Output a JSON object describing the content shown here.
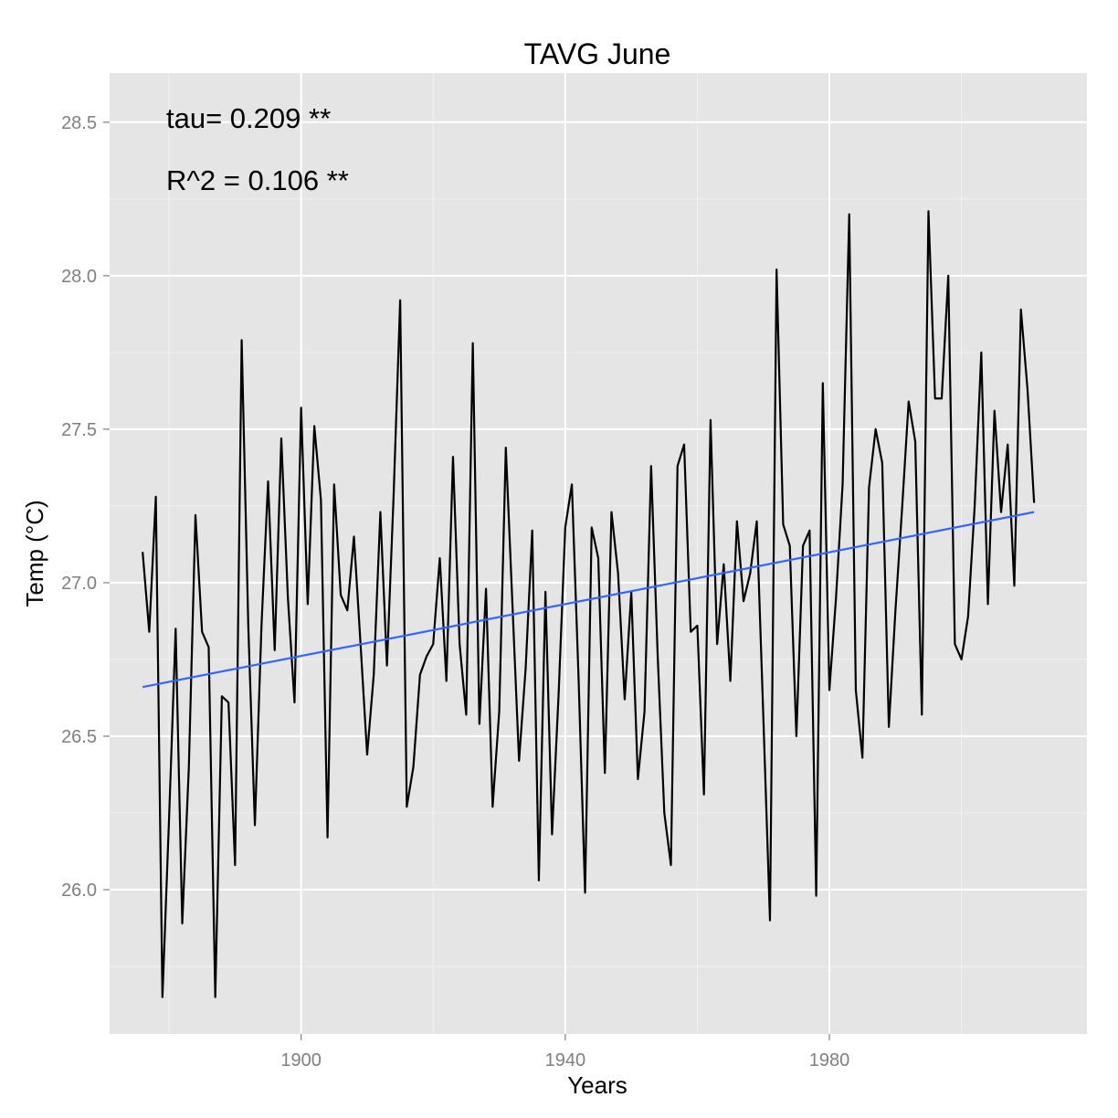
{
  "chart_data": {
    "type": "line",
    "title": "TAVG June",
    "xlabel": "Years",
    "ylabel": "Temp (°C)",
    "xlim": [
      1871,
      2019
    ],
    "ylim": [
      25.53,
      28.66
    ],
    "x_ticks": [
      1900,
      1940,
      1980
    ],
    "y_ticks": [
      26.0,
      26.5,
      27.0,
      27.5,
      28.0,
      28.5
    ],
    "x_tick_labels": [
      "1900",
      "1940",
      "1980"
    ],
    "y_tick_labels": [
      "26.0",
      "26.5",
      "27.0",
      "27.5",
      "28.0",
      "28.5"
    ],
    "grid": true,
    "annotations": [
      "tau= 0.209 **",
      "R^2 =  0.106 **"
    ],
    "colors": {
      "panel": "#e5e5e5",
      "grid": "#ffffff",
      "series": "#000000",
      "trend": "#3366ff"
    },
    "series": [
      {
        "kind": "observed",
        "x": [
          1876,
          1877,
          1878,
          1879,
          1880,
          1881,
          1882,
          1883,
          1884,
          1885,
          1886,
          1887,
          1888,
          1889,
          1890,
          1891,
          1892,
          1893,
          1894,
          1895,
          1896,
          1897,
          1898,
          1899,
          1900,
          1901,
          1902,
          1903,
          1904,
          1905,
          1906,
          1907,
          1908,
          1909,
          1910,
          1911,
          1912,
          1913,
          1914,
          1915,
          1916,
          1917,
          1918,
          1919,
          1920,
          1921,
          1922,
          1923,
          1924,
          1925,
          1926,
          1927,
          1928,
          1929,
          1930,
          1931,
          1932,
          1933,
          1934,
          1935,
          1936,
          1937,
          1938,
          1939,
          1940,
          1941,
          1942,
          1943,
          1944,
          1945,
          1946,
          1947,
          1948,
          1949,
          1950,
          1951,
          1952,
          1953,
          1954,
          1955,
          1956,
          1957,
          1958,
          1959,
          1960,
          1961,
          1962,
          1963,
          1964,
          1965,
          1966,
          1967,
          1968,
          1969,
          1970,
          1971,
          1972,
          1973,
          1974,
          1975,
          1976,
          1977,
          1978,
          1979,
          1980,
          1981,
          1982,
          1983,
          1984,
          1985,
          1986,
          1987,
          1988,
          1989,
          1990,
          1991,
          1992,
          1993,
          1994,
          1995,
          1996,
          1997,
          1998,
          1999,
          2000,
          2001,
          2002,
          2003,
          2004,
          2005,
          2006,
          2007,
          2008,
          2009,
          2010,
          2011
        ],
        "y": [
          27.1,
          26.84,
          27.28,
          25.65,
          26.23,
          26.85,
          25.89,
          26.4,
          27.22,
          26.84,
          26.79,
          25.65,
          26.63,
          26.61,
          26.08,
          27.79,
          26.86,
          26.21,
          26.86,
          27.33,
          26.78,
          27.47,
          26.95,
          26.61,
          27.57,
          26.93,
          27.51,
          27.27,
          26.17,
          27.32,
          26.96,
          26.91,
          27.15,
          26.8,
          26.44,
          26.7,
          27.23,
          26.73,
          27.28,
          27.92,
          26.27,
          26.4,
          26.7,
          26.76,
          26.8,
          27.08,
          26.68,
          27.41,
          26.8,
          26.57,
          27.78,
          26.54,
          26.98,
          26.27,
          26.58,
          27.44,
          26.93,
          26.42,
          26.72,
          27.17,
          26.03,
          26.97,
          26.18,
          26.64,
          27.18,
          27.32,
          26.7,
          25.99,
          27.18,
          27.08,
          26.38,
          27.23,
          27.03,
          26.62,
          26.97,
          26.36,
          26.58,
          27.38,
          26.76,
          26.25,
          26.08,
          27.38,
          27.45,
          26.84,
          26.86,
          26.31,
          27.53,
          26.8,
          27.06,
          26.68,
          27.2,
          26.94,
          27.03,
          27.2,
          26.56,
          25.9,
          28.02,
          27.19,
          27.12,
          26.5,
          27.12,
          27.17,
          25.98,
          27.65,
          26.65,
          26.95,
          27.32,
          28.2,
          26.65,
          26.43,
          27.31,
          27.5,
          27.39,
          26.53,
          26.91,
          27.24,
          27.59,
          27.46,
          26.57,
          28.21,
          27.6,
          27.6,
          28.0,
          26.8,
          26.75,
          26.89,
          27.25,
          27.75,
          26.93,
          27.56,
          27.23,
          27.45,
          26.99,
          27.89,
          27.63,
          27.26
        ]
      },
      {
        "kind": "trend",
        "x": [
          1876,
          2011
        ],
        "y": [
          26.66,
          27.23
        ]
      }
    ]
  }
}
